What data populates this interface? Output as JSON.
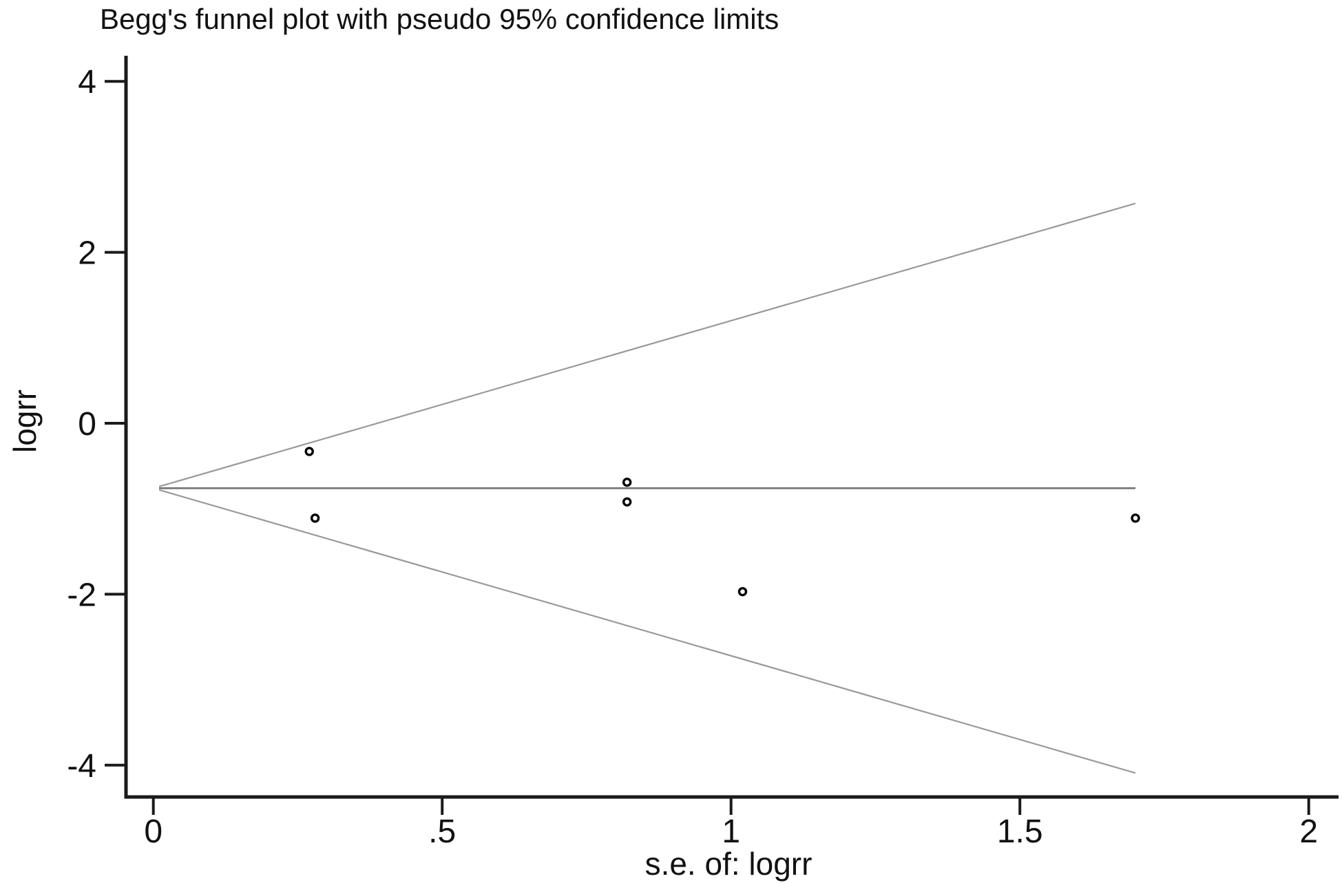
{
  "chart_data": {
    "type": "scatter",
    "title": "Begg's funnel plot with pseudo 95% confidence limits",
    "xlabel": "s.e. of: logrr",
    "ylabel": "logrr",
    "xlim": [
      -0.05,
      2.05
    ],
    "ylim": [
      -4.37,
      4.3
    ],
    "x_ticks": [
      0,
      0.5,
      1,
      1.5,
      2
    ],
    "x_tick_labels": [
      "0",
      ".5",
      "1",
      "1.5",
      "2"
    ],
    "y_ticks": [
      4,
      2,
      0,
      -2,
      -4
    ],
    "y_tick_labels": [
      "4",
      "2",
      "0",
      "-2",
      "-4"
    ],
    "grid": false,
    "legend": "none",
    "points": [
      {
        "x": 0.27,
        "y": -0.33
      },
      {
        "x": 0.28,
        "y": -1.11
      },
      {
        "x": 0.82,
        "y": -0.69
      },
      {
        "x": 0.82,
        "y": -0.92
      },
      {
        "x": 1.02,
        "y": -1.97
      },
      {
        "x": 1.7,
        "y": -1.11
      }
    ],
    "pooled_estimate": -0.76,
    "ci_multiplier": 1.96,
    "funnel_se_min": 0.01,
    "funnel_se_max": 1.7,
    "colors": {
      "background": "#ffffff",
      "axis": "#1a1a1a",
      "text": "#111111",
      "pooled_line": "#787878",
      "confidence_line": "#999999",
      "marker_stroke": "#000000",
      "marker_fill": "#ffffff"
    }
  }
}
